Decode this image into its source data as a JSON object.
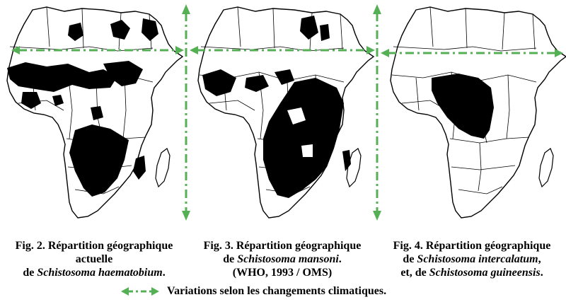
{
  "figures": [
    {
      "line1": "Fig. 2. Répartition géographique",
      "line2": "actuelle",
      "line3_pre": "de ",
      "line3_italic": "Schistosoma haematobium",
      "line3_post": "."
    },
    {
      "line1": "Fig. 3. Répartition géographique",
      "line2_pre": "de ",
      "line2_italic": "Schistosoma mansoni",
      "line2_post": ".",
      "line3": "(WHO, 1993 / OMS)"
    },
    {
      "line1": "Fig. 4. Répartition géographique",
      "line2_pre": "de ",
      "line2_italic": "Schistosoma intercalatum",
      "line2_post": ",",
      "line3_pre": "et, de ",
      "line3_italic": "Schistosoma guineensis",
      "line3_post": "."
    }
  ],
  "legend": {
    "label": "Variations selon les changements climatiques.",
    "arrow_color": "#55b055"
  },
  "colors": {
    "outline": "#000000",
    "distribution_fill": "#000000",
    "arrow": "#55b055"
  }
}
